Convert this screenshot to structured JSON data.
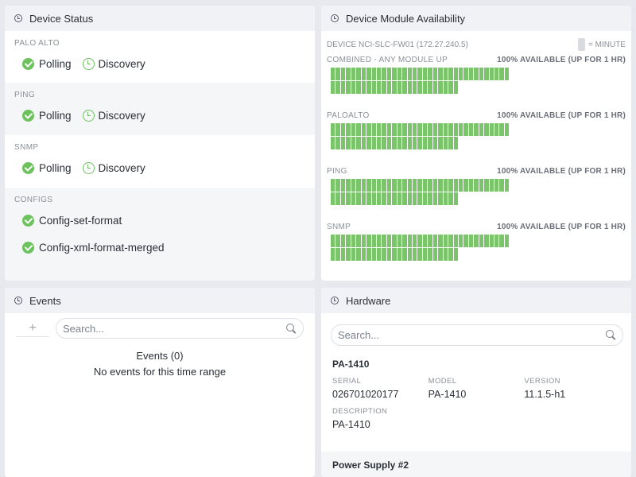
{
  "device_status": {
    "title": "Device Status",
    "sections": [
      {
        "label": "PALO ALTO",
        "items": [
          "Polling",
          "Discovery"
        ]
      },
      {
        "label": "PING",
        "items": [
          "Polling",
          "Discovery"
        ]
      },
      {
        "label": "SNMP",
        "items": [
          "Polling",
          "Discovery"
        ]
      }
    ],
    "configs": {
      "label": "CONFIGS",
      "items": [
        "Config-set-format",
        "Config-xml-format-merged"
      ]
    }
  },
  "availability": {
    "title": "Device Module Availability",
    "device": "DEVICE NCI-SLC-FW01 (172.27.240.5)",
    "legend": "= MINUTE",
    "bar_color": "#7ac46a",
    "modules": [
      {
        "name": "COMBINED - ANY MODULE UP",
        "status": "100% AVAILABLE (UP FOR 1 HR)",
        "availability": 1.0
      },
      {
        "name": "PALOALTO",
        "status": "100% AVAILABLE (UP FOR 1 HR)",
        "availability": 1.0
      },
      {
        "name": "PING",
        "status": "100% AVAILABLE (UP FOR 1 HR)",
        "availability": 1.0
      },
      {
        "name": "SNMP",
        "status": "100% AVAILABLE (UP FOR 1 HR)",
        "availability": 1.0
      }
    ]
  },
  "events": {
    "title": "Events",
    "add_label": "+",
    "search_placeholder": "Search...",
    "count_label": "Events (0)",
    "empty_message": "No events for this time range"
  },
  "hardware": {
    "title": "Hardware",
    "search_placeholder": "Search...",
    "item": {
      "name": "PA-1410",
      "serial_label": "SERIAL",
      "serial": "026701020177",
      "model_label": "MODEL",
      "model": "PA-1410",
      "version_label": "VERSION",
      "version": "11.1.5-h1",
      "description_label": "DESCRIPTION",
      "description": "PA-1410"
    },
    "next_item": "Power Supply #2"
  },
  "colors": {
    "success": "#6cc25c",
    "background": "#e8e9ee"
  }
}
